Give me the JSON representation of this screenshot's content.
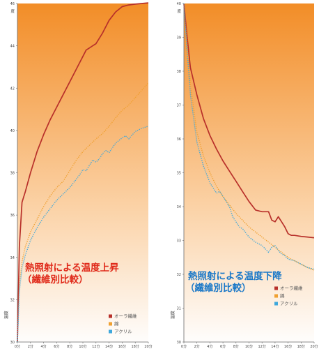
{
  "chart_data": [
    {
      "type": "line",
      "title": "熱照射による温度上昇",
      "subtitle": "（繊維別比較）",
      "title_color": "#e02a1a",
      "ylabel": "温度",
      "y_unit": "度",
      "ylim": [
        30,
        46
      ],
      "yticks": [
        "30",
        "32",
        "34",
        "36",
        "38",
        "40",
        "42",
        "44",
        "46"
      ],
      "xlim": [
        0,
        20
      ],
      "xticks": [
        "0分",
        "2分",
        "4分",
        "6分",
        "8分",
        "10分",
        "12分",
        "14分",
        "16分",
        "18分",
        "20分"
      ],
      "background": {
        "top": "#f28d27",
        "bottom": "#fefdfc"
      },
      "legend_position": "bottom-right",
      "series": [
        {
          "name": "オーラ繊維",
          "color": "#b8302a",
          "style": "solid",
          "x": [
            0,
            0.3,
            0.7,
            1.2,
            2,
            3,
            4,
            5,
            6,
            7,
            8,
            9,
            10,
            10.5,
            11,
            11.5,
            12,
            13,
            14,
            15,
            16,
            17,
            18,
            19,
            20
          ],
          "y": [
            30,
            34.5,
            36.6,
            37.1,
            38,
            39,
            39.8,
            40.5,
            41.1,
            41.7,
            42.3,
            42.9,
            43.5,
            43.8,
            43.9,
            44.0,
            44.1,
            44.6,
            45.2,
            45.6,
            45.85,
            45.93,
            45.97,
            46.0,
            46.03
          ]
        },
        {
          "name": "綿",
          "color": "#f0a030",
          "style": "dotted",
          "x": [
            0,
            0.3,
            0.7,
            1.2,
            2,
            3,
            4,
            5,
            6,
            7,
            8,
            9,
            10,
            11,
            12,
            13,
            14,
            15,
            16,
            17,
            18,
            19,
            20
          ],
          "y": [
            30,
            32.6,
            33.8,
            34.5,
            35.2,
            35.8,
            36.4,
            36.9,
            37.3,
            37.6,
            38.1,
            38.6,
            39.0,
            39.3,
            39.6,
            39.85,
            40.2,
            40.6,
            40.95,
            41.2,
            41.55,
            41.9,
            42.25
          ]
        },
        {
          "name": "アクリル",
          "color": "#3fa8dc",
          "style": "dotted",
          "x": [
            0,
            0.3,
            0.7,
            1.2,
            2,
            3,
            4,
            5,
            6,
            7,
            8,
            9,
            9.5,
            10,
            10.5,
            11,
            11.5,
            12,
            12.5,
            13,
            13.5,
            14,
            15,
            16,
            16.5,
            17,
            18,
            19,
            20
          ],
          "y": [
            30,
            32.4,
            33.5,
            34.1,
            34.8,
            35.4,
            35.9,
            36.3,
            36.7,
            37.0,
            37.3,
            37.7,
            37.9,
            38.15,
            38.1,
            38.35,
            38.6,
            38.5,
            38.65,
            38.9,
            39.05,
            38.95,
            39.4,
            39.65,
            39.75,
            39.6,
            39.95,
            40.1,
            40.2
          ]
        }
      ]
    },
    {
      "type": "line",
      "title": "熱照射による温度下降",
      "subtitle": "（繊維別比較）",
      "title_color": "#1a78c8",
      "ylabel": "温度",
      "y_unit": "度",
      "ylim": [
        30,
        40
      ],
      "yticks": [
        "30",
        "31",
        "32",
        "33",
        "34",
        "35",
        "36",
        "37",
        "38",
        "39",
        "40"
      ],
      "xlim": [
        0,
        20
      ],
      "xticks": [
        "0分",
        "2分",
        "4分",
        "6分",
        "8分",
        "10分",
        "12分",
        "14分",
        "16分",
        "18分",
        "20分"
      ],
      "background": {
        "top": "#f28d27",
        "bottom": "#fefdfc"
      },
      "legend_position": "bottom-right",
      "series": [
        {
          "name": "オーラ繊維",
          "color": "#b8302a",
          "style": "solid",
          "x": [
            0,
            0.5,
            1,
            2,
            3,
            4,
            5,
            6,
            7,
            8,
            9,
            10,
            11,
            12,
            13,
            13.5,
            14,
            14.5,
            15,
            15.5,
            16,
            16.5,
            17,
            18,
            19,
            20
          ],
          "y": [
            40,
            39.0,
            38.1,
            37.3,
            36.6,
            36.1,
            35.7,
            35.35,
            35.05,
            34.75,
            34.45,
            34.15,
            33.9,
            33.85,
            33.85,
            33.6,
            33.55,
            33.7,
            33.55,
            33.4,
            33.2,
            33.15,
            33.15,
            33.12,
            33.1,
            33.08
          ]
        },
        {
          "name": "綿",
          "color": "#f0a030",
          "style": "dotted",
          "x": [
            0,
            0.5,
            1,
            2,
            3,
            4,
            5,
            6,
            7,
            8,
            9,
            10,
            11,
            12,
            13,
            14,
            15,
            16,
            17,
            18,
            19,
            20
          ],
          "y": [
            40,
            38.8,
            37.6,
            36.2,
            35.5,
            35.0,
            34.6,
            34.3,
            34.05,
            33.8,
            33.6,
            33.4,
            33.25,
            33.1,
            32.95,
            32.8,
            32.65,
            32.5,
            32.4,
            32.3,
            32.2,
            32.12
          ]
        },
        {
          "name": "アクリル",
          "color": "#3fa8dc",
          "style": "dotted",
          "x": [
            0,
            0.5,
            1,
            2,
            3,
            4,
            5,
            5.5,
            6,
            7,
            7.5,
            8,
            8.5,
            9,
            10,
            11,
            12,
            12.5,
            13,
            13.5,
            14,
            14.5,
            15,
            15.5,
            16,
            17,
            18,
            19,
            20
          ],
          "y": [
            40,
            38.6,
            37.3,
            35.9,
            35.2,
            34.7,
            34.4,
            34.45,
            34.3,
            34.0,
            33.7,
            33.55,
            33.4,
            33.35,
            33.1,
            32.95,
            32.85,
            32.75,
            32.65,
            32.8,
            32.85,
            32.7,
            32.6,
            32.55,
            32.45,
            32.4,
            32.3,
            32.2,
            32.15
          ]
        }
      ]
    }
  ]
}
